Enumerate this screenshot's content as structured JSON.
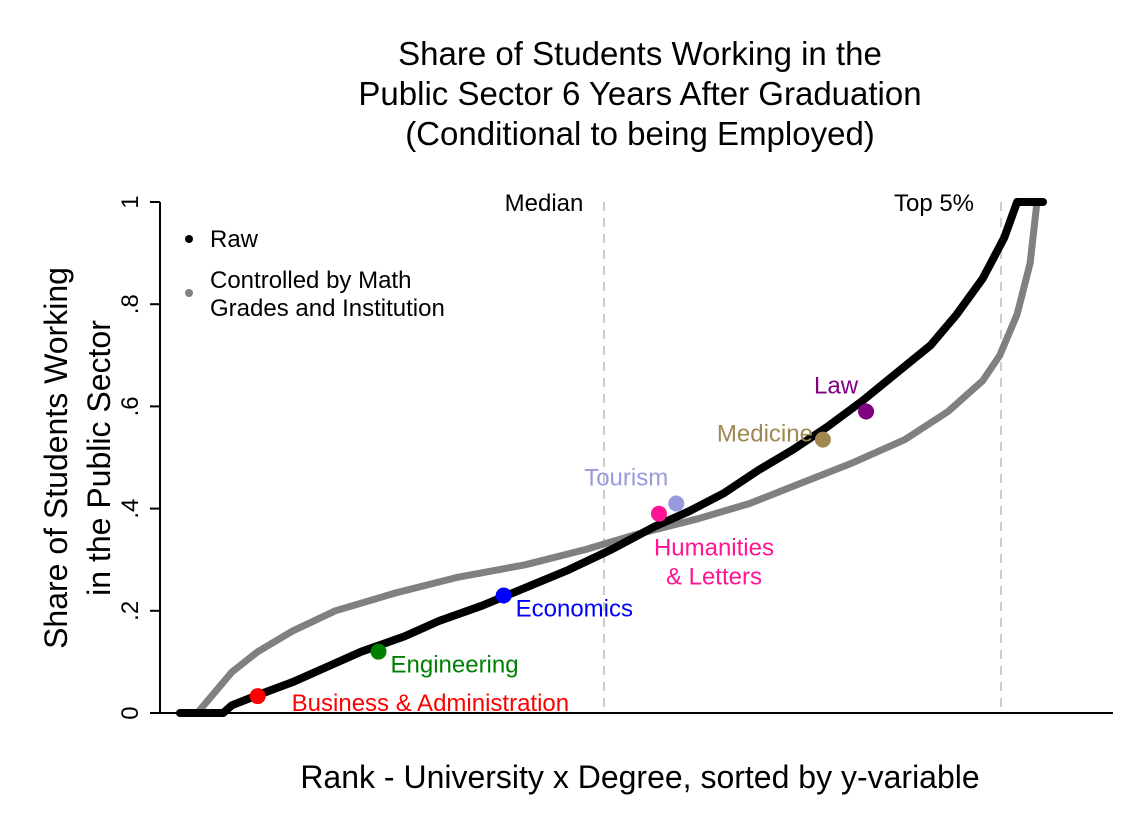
{
  "chart_data": {
    "type": "line",
    "title_lines": [
      "Share of Students Working in the",
      "Public Sector 6 Years After Graduation",
      "(Conditional to being Employed)"
    ],
    "xlabel": "Rank - University x Degree, sorted by y-variable",
    "ylabel_lines": [
      "Share of Students Working",
      "in the Public Sector"
    ],
    "xlim": [
      0,
      1
    ],
    "ylim": [
      0,
      1
    ],
    "y_ticks": [
      {
        "value": 0,
        "label": "0"
      },
      {
        "value": 0.2,
        "label": ".2"
      },
      {
        "value": 0.4,
        "label": ".4"
      },
      {
        "value": 0.6,
        "label": ".6"
      },
      {
        "value": 0.8,
        "label": ".8"
      },
      {
        "value": 1,
        "label": "1"
      }
    ],
    "grid": false,
    "legend_position": "top-left",
    "reference_lines": [
      {
        "x": 0.5,
        "label": "Median"
      },
      {
        "x": 0.95,
        "label": "Top 5%"
      }
    ],
    "series": [
      {
        "name": "Raw",
        "color": "#000000",
        "points": [
          [
            0.0,
            0.0
          ],
          [
            0.05,
            0.0
          ],
          [
            0.06,
            0.015
          ],
          [
            0.09,
            0.035
          ],
          [
            0.13,
            0.06
          ],
          [
            0.17,
            0.09
          ],
          [
            0.21,
            0.12
          ],
          [
            0.26,
            0.15
          ],
          [
            0.3,
            0.18
          ],
          [
            0.35,
            0.21
          ],
          [
            0.4,
            0.245
          ],
          [
            0.45,
            0.28
          ],
          [
            0.5,
            0.32
          ],
          [
            0.55,
            0.365
          ],
          [
            0.59,
            0.395
          ],
          [
            0.63,
            0.43
          ],
          [
            0.67,
            0.475
          ],
          [
            0.71,
            0.515
          ],
          [
            0.75,
            0.56
          ],
          [
            0.79,
            0.61
          ],
          [
            0.83,
            0.665
          ],
          [
            0.87,
            0.72
          ],
          [
            0.9,
            0.78
          ],
          [
            0.93,
            0.85
          ],
          [
            0.955,
            0.93
          ],
          [
            0.97,
            1.0
          ],
          [
            1.0,
            1.0
          ]
        ]
      },
      {
        "name": "Controlled by Math Grades and Institution",
        "color": "#808080",
        "points": [
          [
            0.0,
            0.0
          ],
          [
            0.02,
            0.0
          ],
          [
            0.04,
            0.04
          ],
          [
            0.06,
            0.08
          ],
          [
            0.09,
            0.12
          ],
          [
            0.13,
            0.16
          ],
          [
            0.18,
            0.2
          ],
          [
            0.25,
            0.235
          ],
          [
            0.32,
            0.265
          ],
          [
            0.4,
            0.29
          ],
          [
            0.47,
            0.32
          ],
          [
            0.53,
            0.35
          ],
          [
            0.6,
            0.38
          ],
          [
            0.66,
            0.41
          ],
          [
            0.72,
            0.45
          ],
          [
            0.78,
            0.49
          ],
          [
            0.84,
            0.535
          ],
          [
            0.89,
            0.59
          ],
          [
            0.93,
            0.65
          ],
          [
            0.95,
            0.7
          ],
          [
            0.97,
            0.78
          ],
          [
            0.985,
            0.88
          ],
          [
            0.993,
            1.0
          ]
        ]
      }
    ],
    "annotations": [
      {
        "label": "Business & Administration",
        "x": 0.09,
        "y": 0.033,
        "color": "#ff0000",
        "anchor": "below-right"
      },
      {
        "label": "Engineering",
        "x": 0.23,
        "y": 0.12,
        "color": "#008000",
        "anchor": "right"
      },
      {
        "label": "Economics",
        "x": 0.375,
        "y": 0.23,
        "color": "#0000ff",
        "anchor": "right"
      },
      {
        "label": "Humanities\n& Letters",
        "x": 0.555,
        "y": 0.39,
        "color": "#ff1493",
        "anchor": "below"
      },
      {
        "label": "Tourism",
        "x": 0.575,
        "y": 0.41,
        "color": "#9999dd",
        "anchor": "above-left"
      },
      {
        "label": "Medicine",
        "x": 0.745,
        "y": 0.535,
        "color": "#a08850",
        "anchor": "left"
      },
      {
        "label": "Law",
        "x": 0.795,
        "y": 0.59,
        "color": "#800080",
        "anchor": "above-left"
      }
    ]
  }
}
